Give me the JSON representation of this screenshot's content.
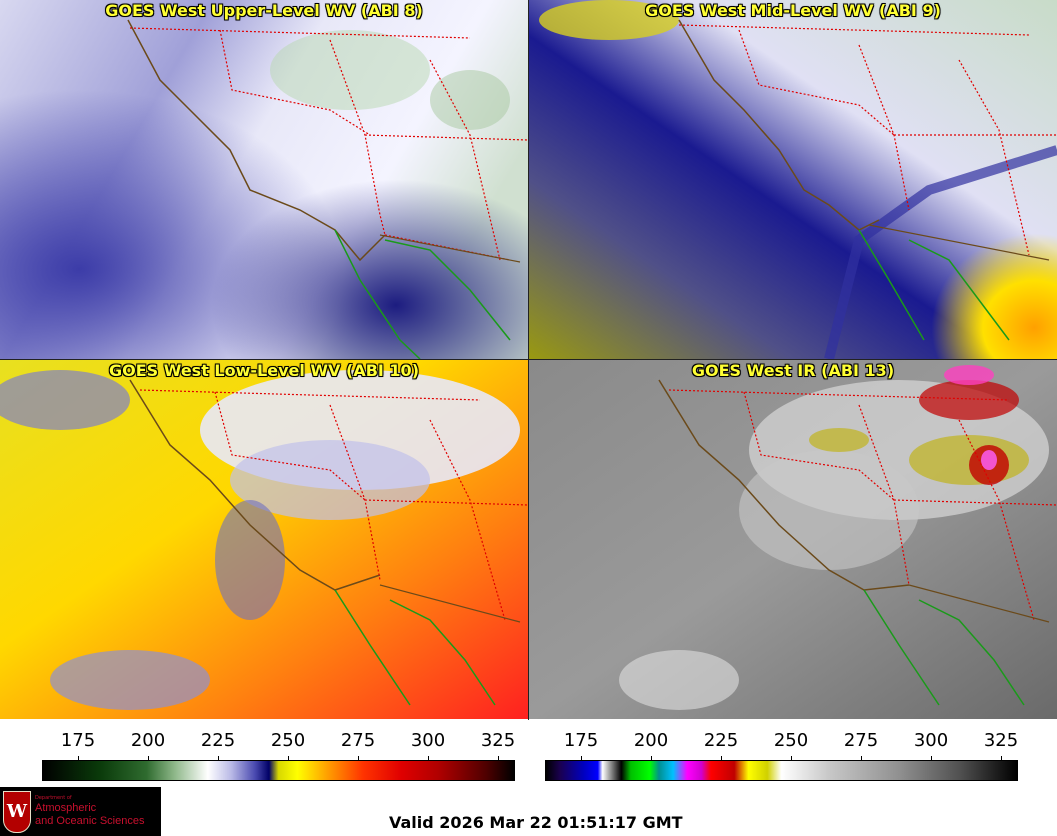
{
  "panels": [
    {
      "title": "GOES West Upper-Level WV (ABI 8)"
    },
    {
      "title": "GOES West Mid-Level WV (ABI 9)"
    },
    {
      "title": "GOES West Low-Level WV (ABI 10)"
    },
    {
      "title": "GOES West IR (ABI 13)"
    }
  ],
  "colorbars": {
    "wv": {
      "ticks": [
        "175",
        "200",
        "225",
        "250",
        "275",
        "300",
        "325"
      ]
    },
    "ir": {
      "ticks": [
        "175",
        "200",
        "225",
        "250",
        "275",
        "300",
        "325"
      ]
    }
  },
  "logo": {
    "crest_letter": "W",
    "department": "Department of",
    "line1": "Atmospheric",
    "line2": "and Oceanic Sciences"
  },
  "valid_time": "Valid 2026 Mar 22 01:51:17 GMT",
  "colors": {
    "title": "#ffff33",
    "state_border": "#e00000",
    "coastline": "#6b4a1a",
    "mexico_coast": "#1a9a1a"
  }
}
